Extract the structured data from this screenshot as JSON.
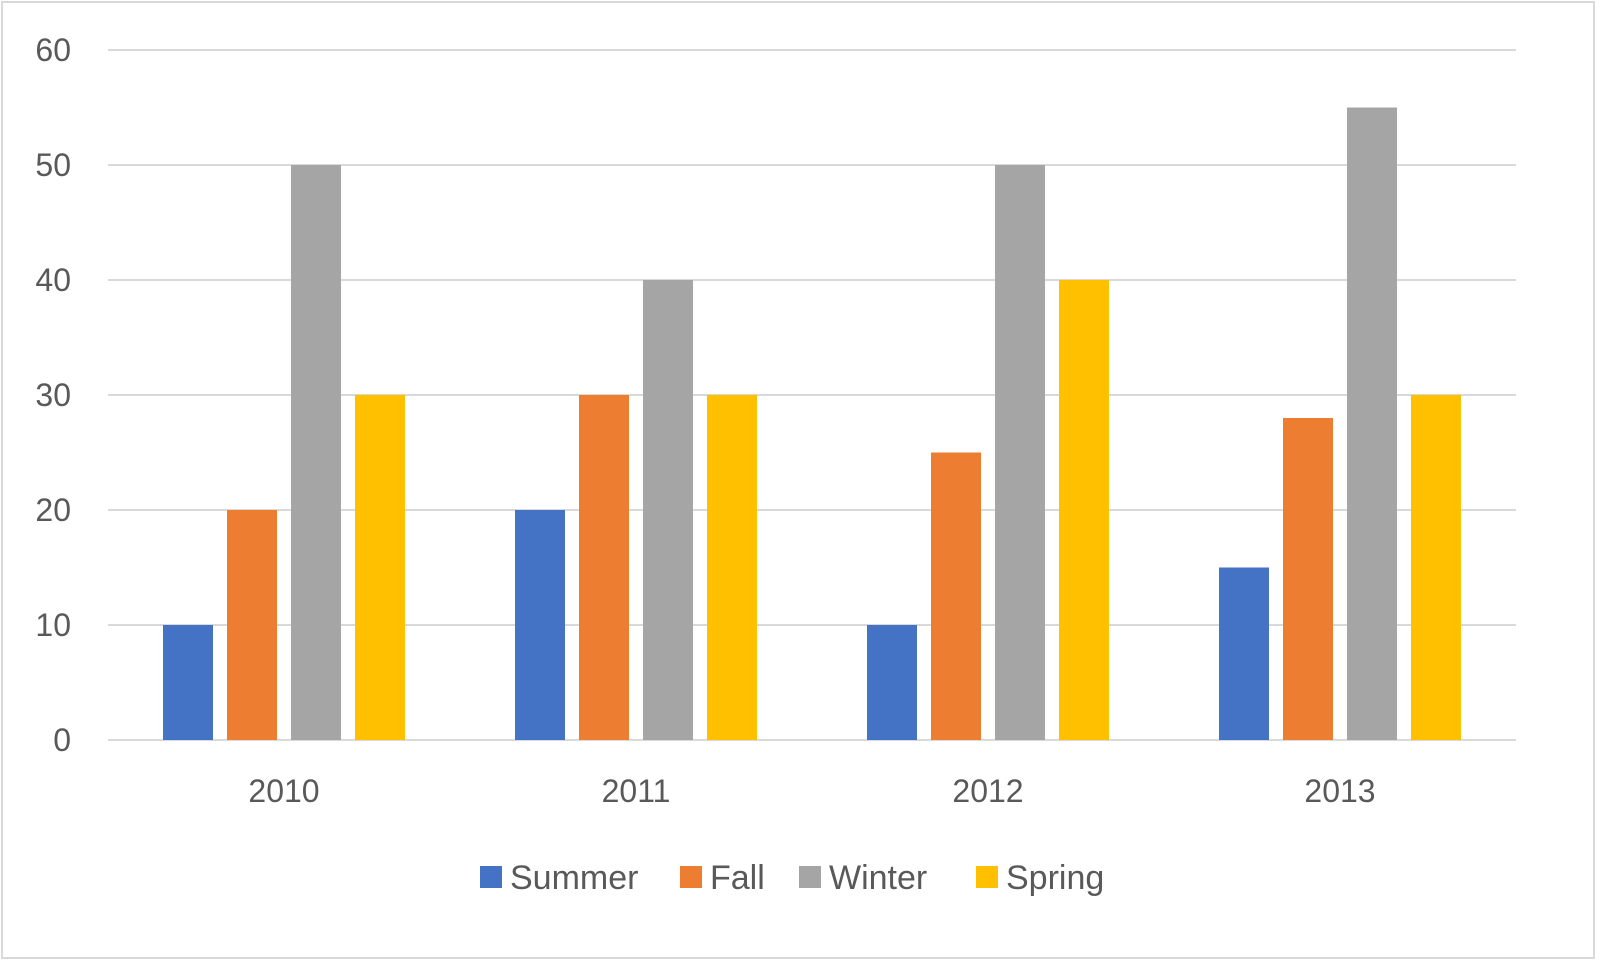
{
  "chart_data": {
    "type": "bar",
    "title": "",
    "xlabel": "",
    "ylabel": "",
    "categories": [
      "2010",
      "2011",
      "2012",
      "2013"
    ],
    "series": [
      {
        "name": "Summer",
        "color": "#4472C4",
        "values": [
          10,
          20,
          10,
          15
        ]
      },
      {
        "name": "Fall",
        "color": "#ED7D31",
        "values": [
          20,
          30,
          25,
          28
        ]
      },
      {
        "name": "Winter",
        "color": "#A5A5A5",
        "values": [
          50,
          40,
          50,
          55
        ]
      },
      {
        "name": "Spring",
        "color": "#FFC000",
        "values": [
          30,
          30,
          40,
          30
        ]
      }
    ],
    "ylim": [
      0,
      60
    ],
    "yticks": [
      0,
      10,
      20,
      30,
      40,
      50,
      60
    ],
    "grid": true,
    "legend_position": "bottom-center"
  }
}
